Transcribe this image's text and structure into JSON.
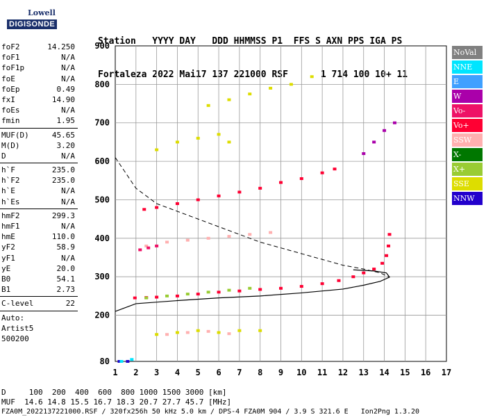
{
  "logo": {
    "line1": "Lowell",
    "line2": "DIGISONDE"
  },
  "header": {
    "line1": "Station   YYYY DAY   DDD HHMMSS P1  FFS S AXN PPS IGA PS",
    "line2": "Fortaleza 2022 Mai17 137 221000 RSF      1 714 100 10+ 11"
  },
  "params": {
    "group1": [
      {
        "name": "foF2",
        "value": "14.250"
      },
      {
        "name": "foF1",
        "value": "N/A"
      },
      {
        "name": "foF1p",
        "value": "N/A"
      },
      {
        "name": "foE",
        "value": "N/A"
      },
      {
        "name": "foEp",
        "value": "0.49"
      },
      {
        "name": "fxI",
        "value": "14.90"
      },
      {
        "name": "foEs",
        "value": "N/A"
      },
      {
        "name": "fmin",
        "value": "1.95"
      }
    ],
    "group2": [
      {
        "name": "MUF(D)",
        "value": "45.65"
      },
      {
        "name": "M(D)",
        "value": "3.20"
      },
      {
        "name": "D",
        "value": "N/A"
      }
    ],
    "group3": [
      {
        "name": "h`F",
        "value": "235.0"
      },
      {
        "name": "h`F2",
        "value": "235.0"
      },
      {
        "name": "h`E",
        "value": "N/A"
      },
      {
        "name": "h`Es",
        "value": "N/A"
      }
    ],
    "group4": [
      {
        "name": "hmF2",
        "value": "299.3"
      },
      {
        "name": "hmF1",
        "value": "N/A"
      },
      {
        "name": "hmE",
        "value": "110.0"
      },
      {
        "name": "yF2",
        "value": "58.9"
      },
      {
        "name": "yF1",
        "value": "N/A"
      },
      {
        "name": "yE",
        "value": "20.0"
      },
      {
        "name": "B0",
        "value": "54.1"
      },
      {
        "name": "B1",
        "value": "2.73"
      }
    ],
    "clevel": {
      "name": "C-level",
      "value": "22"
    },
    "auto": [
      "Auto:",
      "Artist5",
      "500200"
    ]
  },
  "legend": [
    {
      "label": "NoVal",
      "color": "#808080"
    },
    {
      "label": "NNE",
      "color": "#00e5ff"
    },
    {
      "label": "E",
      "color": "#3fa0ff"
    },
    {
      "label": "W",
      "color": "#aa00aa"
    },
    {
      "label": "Vo-",
      "color": "#ee1166"
    },
    {
      "label": "Vo+",
      "color": "#ff0033"
    },
    {
      "label": "SSW",
      "color": "#ffb0b0"
    },
    {
      "label": "X-",
      "color": "#007700"
    },
    {
      "label": "X+",
      "color": "#99cc33"
    },
    {
      "label": "SSE",
      "color": "#dddd00"
    },
    {
      "label": "NNW",
      "color": "#2200cc"
    }
  ],
  "footer": {
    "d_line": "D     100  200  400  600  800 1000 1500 3000 [km]",
    "muf_line": "MUF  14.6 14.8 15.5 16.7 18.3 20.7 27.7 45.7 [MHz]",
    "file_line": "FZA0M_2022137221000.RSF / 320fx256h 50 kHz 5.0 km / DPS-4 FZA0M 904 / 3.9 S 321.6 E   Ion2Png 1.3.20"
  },
  "chart_data": {
    "type": "scatter",
    "xlim": [
      1,
      17
    ],
    "ylim": [
      80,
      900
    ],
    "x_ticks": [
      "1",
      "2",
      "3",
      "4",
      "5",
      "6",
      "7",
      "8",
      "9",
      "10",
      "11",
      "12",
      "13",
      "14",
      "15",
      "16",
      "17"
    ],
    "y_ticks": [
      "80",
      "200",
      "300",
      "400",
      "500",
      "600",
      "700",
      "800",
      "900"
    ],
    "grid": true,
    "series": [
      {
        "name": "Vo+",
        "color": "#ff0033",
        "x": [
          1.95,
          2.5,
          3,
          4,
          5,
          6,
          7,
          8,
          9,
          10,
          11,
          11.8,
          12.5,
          13,
          13.5,
          13.9,
          14.1,
          14.2,
          14.25
        ],
        "y": [
          245,
          246,
          247,
          250,
          255,
          260,
          263,
          267,
          270,
          275,
          282,
          290,
          300,
          310,
          320,
          335,
          355,
          380,
          410
        ]
      },
      {
        "name": "Vo+",
        "color": "#ff0033",
        "x": [
          2.4,
          3,
          4,
          5,
          6,
          7,
          8,
          9,
          10,
          11,
          11.6
        ],
        "y": [
          475,
          480,
          490,
          500,
          510,
          520,
          530,
          545,
          555,
          570,
          580
        ]
      },
      {
        "name": "W",
        "color": "#aa00aa",
        "x": [
          13,
          13.5,
          14,
          14.5
        ],
        "y": [
          620,
          650,
          680,
          700
        ]
      },
      {
        "name": "X+",
        "color": "#99cc33",
        "x": [
          2.5,
          3.5,
          4.5,
          5.5,
          6.5,
          7.5
        ],
        "y": [
          245,
          250,
          255,
          260,
          265,
          270
        ]
      },
      {
        "name": "SSE",
        "color": "#dddd00",
        "x": [
          3,
          4,
          5,
          6,
          7,
          8
        ],
        "y": [
          150,
          155,
          160,
          155,
          160,
          160
        ]
      },
      {
        "name": "SSW",
        "color": "#ffb0b0",
        "x": [
          3.5,
          4.5,
          5.5,
          6.5
        ],
        "y": [
          150,
          155,
          158,
          152
        ]
      },
      {
        "name": "SSE",
        "color": "#dddd00",
        "x": [
          3,
          4,
          5,
          6,
          6.5
        ],
        "y": [
          630,
          650,
          660,
          670,
          650
        ]
      },
      {
        "name": "SSE",
        "color": "#dddd00",
        "x": [
          5.5,
          6.5,
          7.5,
          8.5,
          9.5,
          10.5
        ],
        "y": [
          745,
          760,
          775,
          790,
          800,
          820
        ]
      },
      {
        "name": "SSW",
        "color": "#ffb0b0",
        "x": [
          2.5,
          3.5,
          4.5,
          5.5,
          6.5,
          7.5,
          8.5
        ],
        "y": [
          380,
          390,
          395,
          400,
          405,
          410,
          415
        ]
      },
      {
        "name": "Vo-",
        "color": "#ee1166",
        "x": [
          2.2,
          2.6,
          3
        ],
        "y": [
          370,
          375,
          380
        ]
      },
      {
        "name": "NNW",
        "color": "#2200cc",
        "x": [
          1.2,
          1.6
        ],
        "y": [
          80,
          80
        ]
      },
      {
        "name": "NNE",
        "color": "#00e5ff",
        "x": [
          1.3,
          1.8
        ],
        "y": [
          80,
          85
        ]
      }
    ],
    "profile_solid": {
      "x": [
        1,
        2,
        4,
        6,
        8,
        10,
        12,
        13,
        13.8,
        14.25,
        14.1,
        13.5,
        12.5
      ],
      "y": [
        210,
        230,
        238,
        245,
        250,
        258,
        268,
        278,
        288,
        299,
        310,
        315,
        318
      ]
    },
    "profile_dashed": {
      "x": [
        1,
        2,
        3,
        4,
        5,
        6,
        7,
        8,
        9,
        10,
        11,
        12,
        13,
        13.8,
        14.25
      ],
      "y": [
        610,
        530,
        490,
        470,
        450,
        430,
        410,
        390,
        375,
        360,
        345,
        330,
        320,
        310,
        299
      ]
    }
  }
}
